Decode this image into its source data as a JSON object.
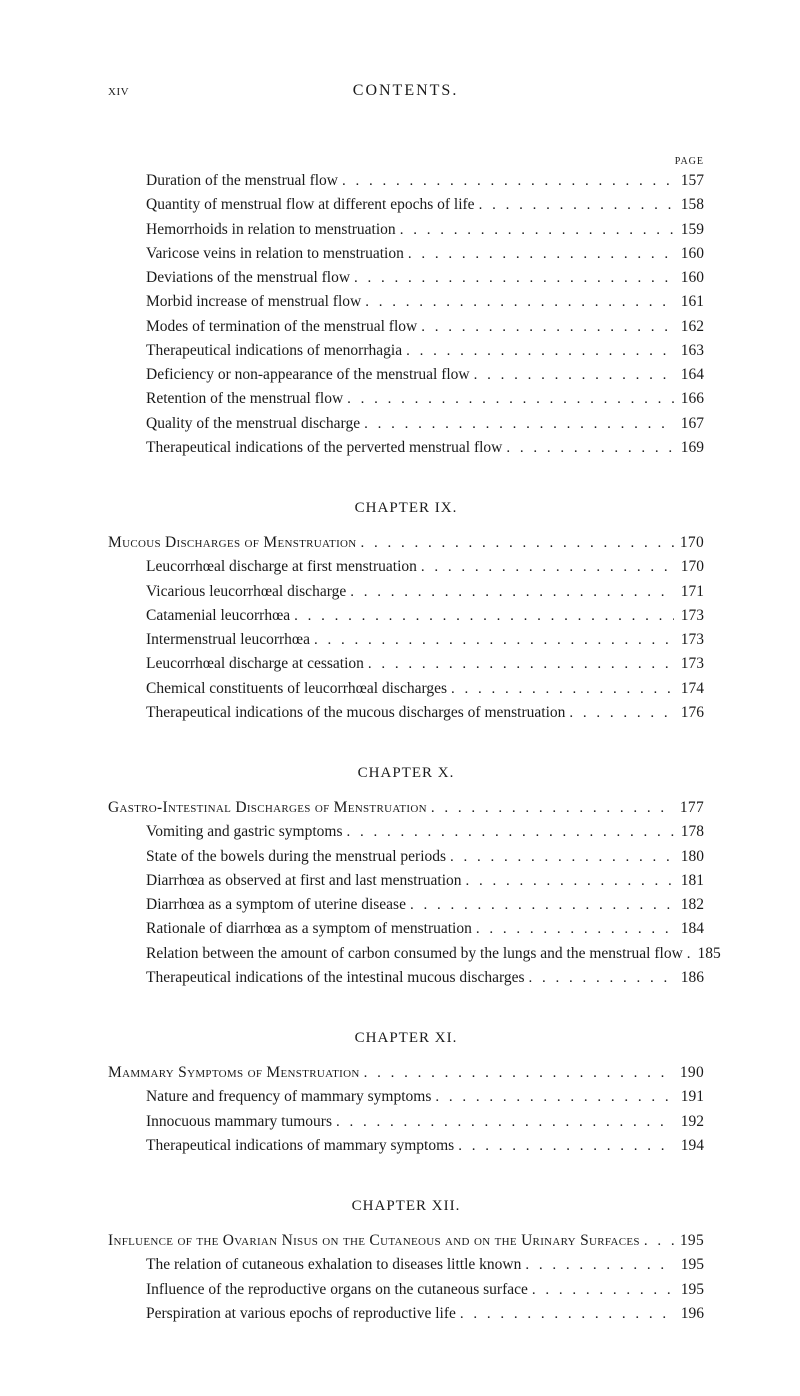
{
  "runningHead": {
    "pageRoman": "xiv",
    "title": "CONTENTS."
  },
  "pageLabel": "PAGE",
  "leaders": ". . . . . . . . . . . . . . . . . . . . . . . . . . . . . . . . . . . . . . . .",
  "continued": [
    {
      "label": "Duration of the menstrual flow",
      "page": "157"
    },
    {
      "label": "Quantity of menstrual flow at different epochs of life",
      "page": "158"
    },
    {
      "label": "Hemorrhoids in relation to menstruation",
      "page": "159"
    },
    {
      "label": "Varicose veins in relation to menstruation",
      "page": "160"
    },
    {
      "label": "Deviations of the menstrual flow",
      "page": "160"
    },
    {
      "label": "Morbid increase of menstrual flow",
      "page": "161"
    },
    {
      "label": "Modes of termination of the menstrual flow",
      "page": "162"
    },
    {
      "label": "Therapeutical indications of menorrhagia",
      "page": "163"
    },
    {
      "label": "Deficiency or non-appearance of the menstrual flow",
      "page": "164"
    },
    {
      "label": "Retention of the menstrual flow",
      "page": "166"
    },
    {
      "label": "Quality of the menstrual discharge",
      "page": "167"
    },
    {
      "label": "Therapeutical indications of the perverted menstrual flow",
      "page": "169"
    }
  ],
  "chapters": [
    {
      "head": "CHAPTER IX.",
      "section": {
        "label": "Mucous Discharges of Menstruation",
        "page": "170"
      },
      "items": [
        {
          "label": "Leucorrhœal discharge at first menstruation",
          "page": "170"
        },
        {
          "label": "Vicarious leucorrhœal discharge",
          "page": "171"
        },
        {
          "label": "Catamenial leucorrhœa",
          "page": "173"
        },
        {
          "label": "Intermenstrual leucorrhœa",
          "page": "173"
        },
        {
          "label": "Leucorrhœal discharge at cessation",
          "page": "173"
        },
        {
          "label": "Chemical constituents of leucorrhœal discharges",
          "page": "174"
        },
        {
          "label": "Therapeutical indications of the mucous discharges of menstruation",
          "page": "176"
        }
      ]
    },
    {
      "head": "CHAPTER X.",
      "section": {
        "label": "Gastro-Intestinal Discharges of Menstruation",
        "page": "177"
      },
      "items": [
        {
          "label": "Vomiting and gastric symptoms",
          "page": "178"
        },
        {
          "label": "State of the bowels during the menstrual periods",
          "page": "180"
        },
        {
          "label": "Diarrhœa as observed at first and last menstruation",
          "page": "181"
        },
        {
          "label": "Diarrhœa as a symptom of uterine disease",
          "page": "182"
        },
        {
          "label": "Rationale of diarrhœa as a symptom of menstruation",
          "page": "184"
        },
        {
          "label": "Relation between the amount of carbon consumed by the lungs and the menstrual flow",
          "page": "185"
        },
        {
          "label": "Therapeutical indications of the intestinal mucous discharges",
          "page": "186"
        }
      ]
    },
    {
      "head": "CHAPTER XI.",
      "section": {
        "label": "Mammary Symptoms of Menstruation",
        "page": "190"
      },
      "items": [
        {
          "label": "Nature and frequency of mammary symptoms",
          "page": "191"
        },
        {
          "label": "Innocuous mammary tumours",
          "page": "192"
        },
        {
          "label": "Therapeutical indications of mammary symptoms",
          "page": "194"
        }
      ]
    },
    {
      "head": "CHAPTER XII.",
      "section": {
        "label": "Influence of the Ovarian Nisus on the Cutaneous and on the Urinary Surfaces",
        "page": "195"
      },
      "items": [
        {
          "label": "The relation of cutaneous exhalation to diseases little known",
          "page": "195"
        },
        {
          "label": "Influence of the reproductive organs on the cutaneous surface",
          "page": "195"
        },
        {
          "label": "Perspiration at various epochs of reproductive life",
          "page": "196"
        }
      ]
    }
  ]
}
